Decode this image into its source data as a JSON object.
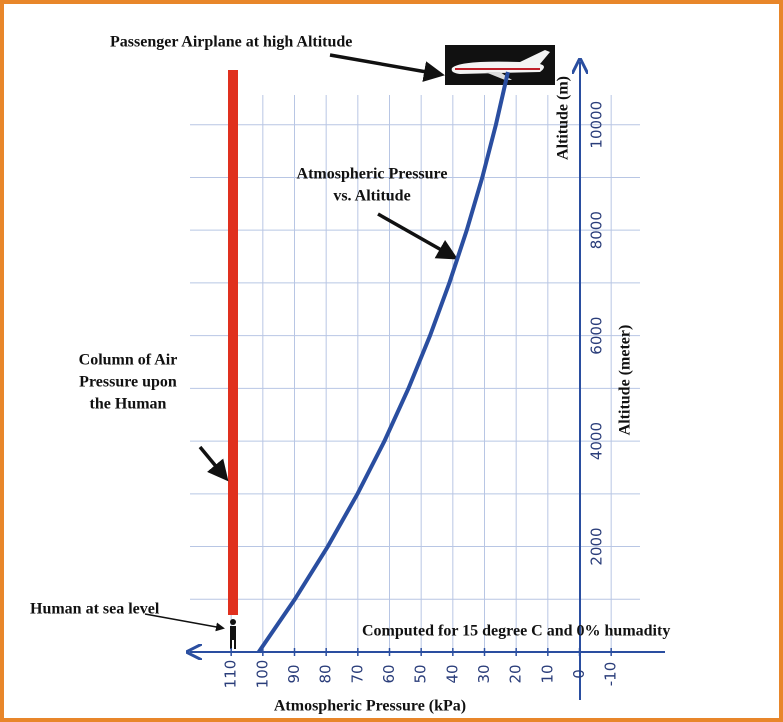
{
  "chart_data": {
    "type": "line",
    "x_label": "Atmospheric Pressure (kPa)",
    "y_label": "Altitude (meter)",
    "y_axis_end_label": "Altitude (m)",
    "x": [
      101.3,
      89.9,
      79.5,
      70.1,
      61.6,
      54.0,
      47.2,
      41.1,
      35.6,
      30.7,
      26.4,
      22.6
    ],
    "values": [
      0,
      1000,
      2000,
      3000,
      4000,
      5000,
      6000,
      7000,
      8000,
      9000,
      10000,
      11000
    ],
    "color": "#2a4ea0",
    "xlim": [
      123,
      -27
    ],
    "xticks": [
      110,
      100,
      90,
      80,
      70,
      60,
      50,
      40,
      30,
      20,
      10,
      0,
      -10
    ],
    "ylim": [
      0,
      11000
    ],
    "yticks": [
      2000,
      4000,
      6000,
      8000,
      10000
    ],
    "minor_yticks": [
      1000,
      3000,
      5000,
      7000,
      9000
    ],
    "grid": true,
    "annotations": {
      "airplane": "Passenger Airplane at high Altitude",
      "curve": [
        "Atmospheric Pressure",
        "vs. Altitude"
      ],
      "column": [
        "Column of Air",
        "Pressure upon",
        "the Human"
      ],
      "human": "Human at sea level",
      "note": "Computed for 15 degree C and 0% humadity"
    }
  }
}
